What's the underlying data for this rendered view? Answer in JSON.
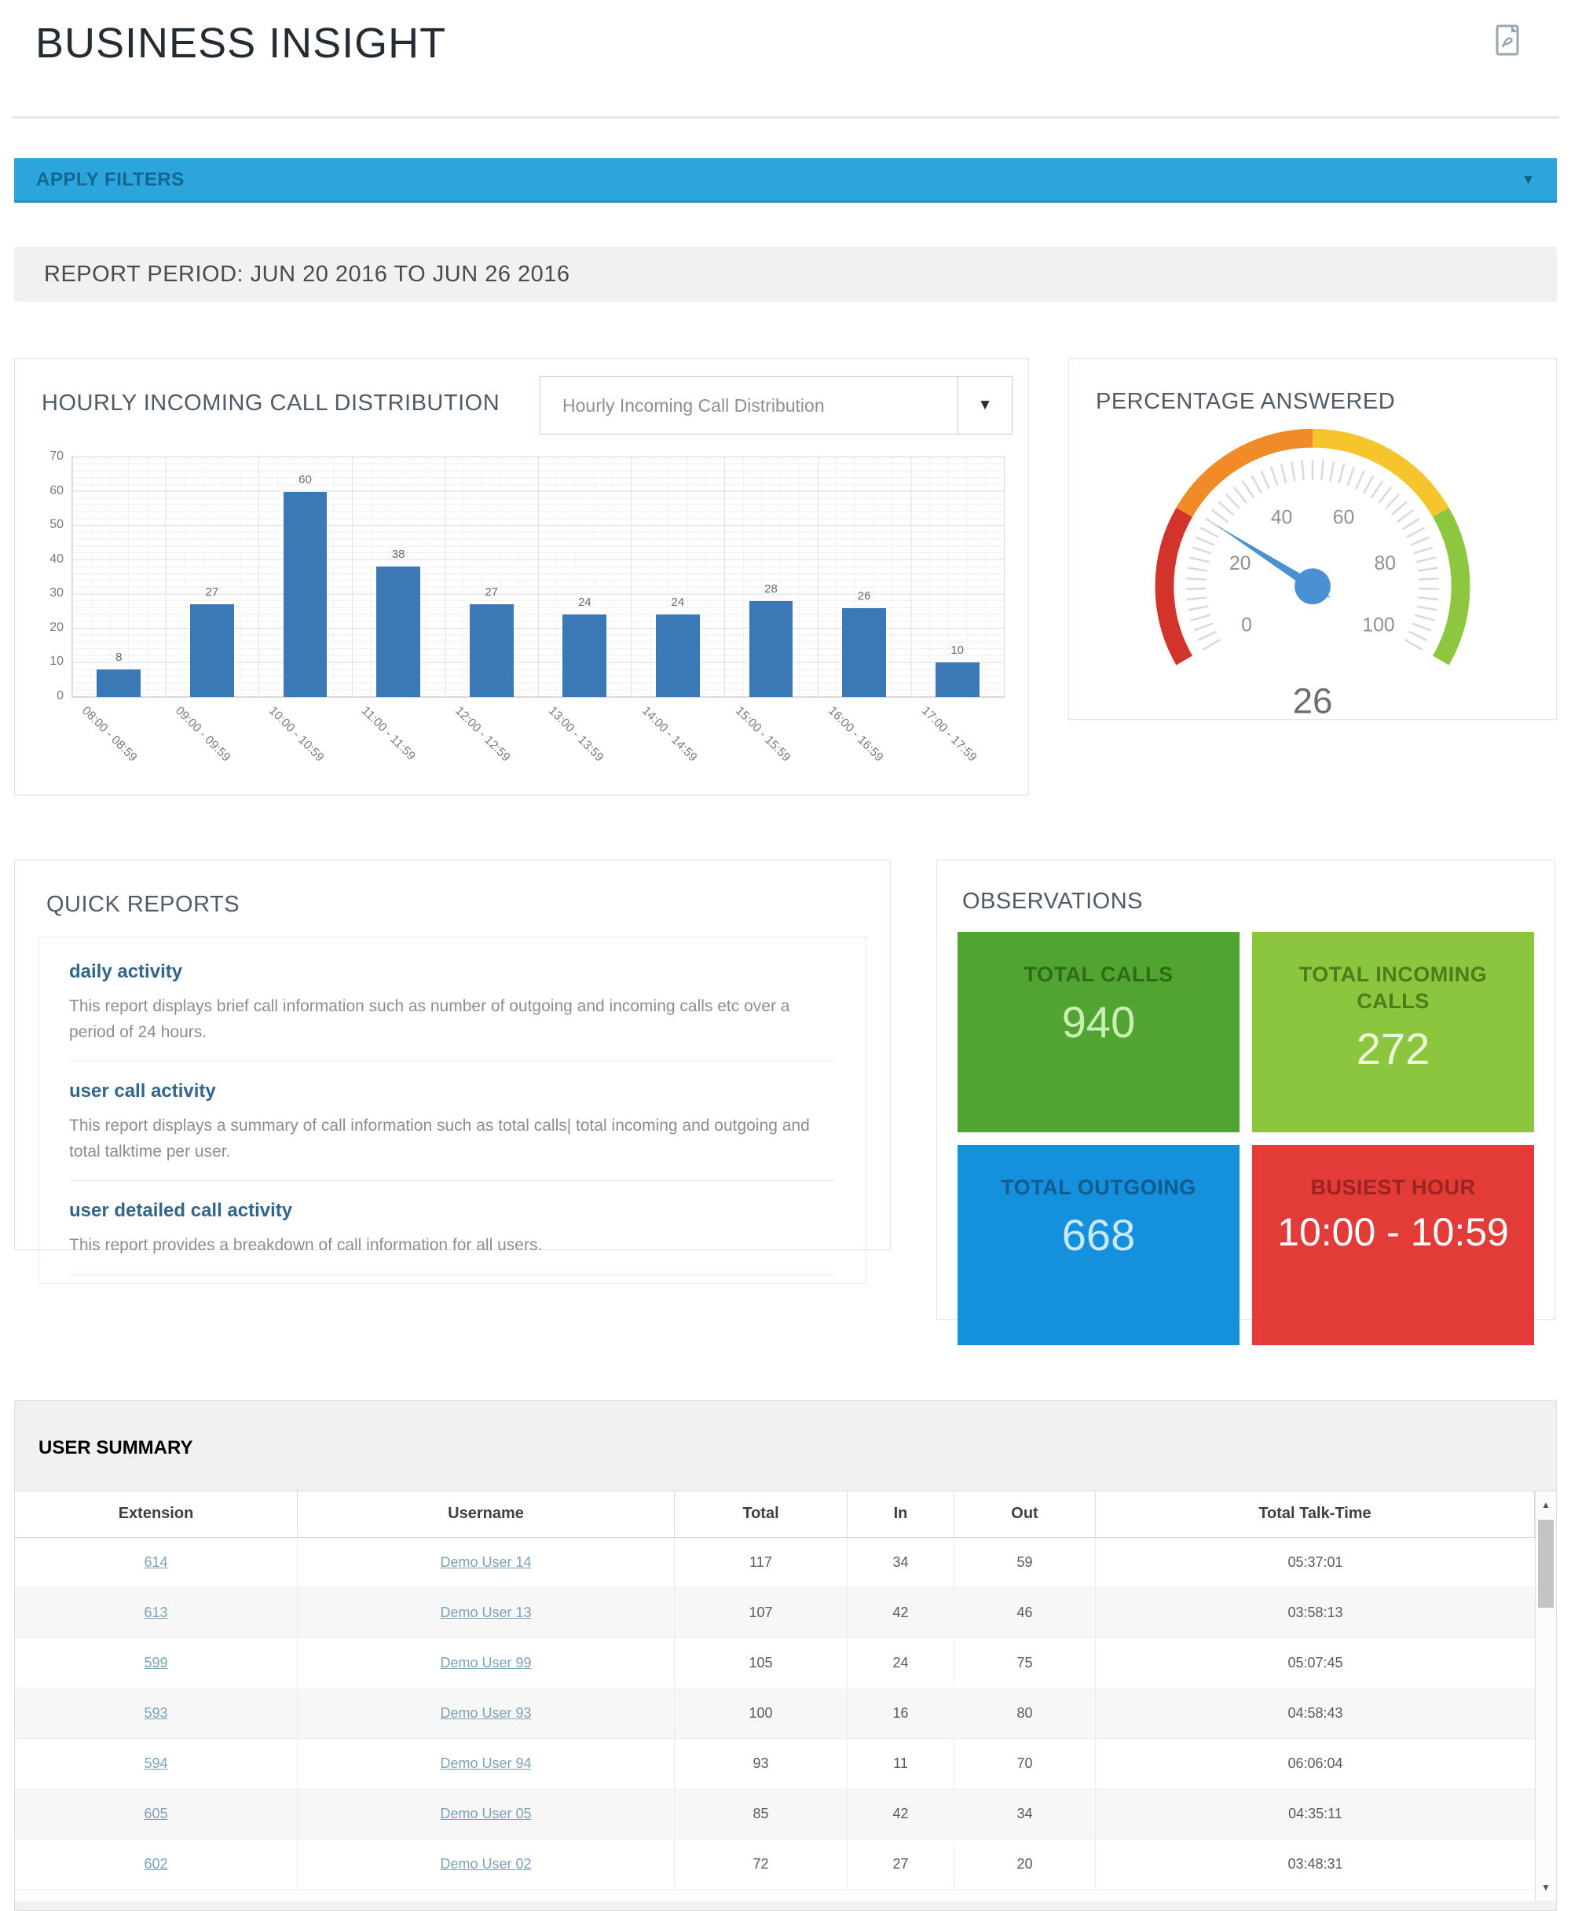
{
  "page": {
    "title": "BUSINESS INSIGHT"
  },
  "icons": {
    "caret_down": "▼",
    "arrow_up": "▲",
    "arrow_down": "▼"
  },
  "filters": {
    "label": "APPLY FILTERS"
  },
  "report_period": {
    "text": "REPORT PERIOD: JUN 20 2016 TO JUN 26 2016"
  },
  "chart_panel": {
    "title": "HOURLY INCOMING CALL DISTRIBUTION",
    "dropdown_selected": "Hourly Incoming Call Distribution"
  },
  "chart_data": [
    {
      "type": "bar",
      "title": "Hourly Incoming Call Distribution",
      "categories": [
        "08:00 - 08:59",
        "09:00 - 09:59",
        "10:00 - 10:59",
        "11:00 - 11:59",
        "12:00 - 12:59",
        "13:00 - 13:59",
        "14:00 - 14:59",
        "15:00 - 15:59",
        "16:00 - 16:59",
        "17:00 - 17:59"
      ],
      "values": [
        8,
        27,
        60,
        38,
        27,
        24,
        24,
        28,
        26,
        10
      ],
      "xlabel": "",
      "ylabel": "",
      "ylim": [
        0,
        70
      ],
      "ytick_step": 10,
      "grid": true,
      "bar_color": "#3a79b6"
    },
    {
      "type": "gauge",
      "title": "Percentage Answered",
      "value": 26,
      "min": 0,
      "max": 100,
      "ticks": [
        0,
        20,
        40,
        60,
        80,
        100
      ],
      "segments": [
        {
          "from": 0,
          "to": 25,
          "color": "#d2342c"
        },
        {
          "from": 25,
          "to": 50,
          "color": "#f08b28"
        },
        {
          "from": 50,
          "to": 75,
          "color": "#f6c52e"
        },
        {
          "from": 75,
          "to": 100,
          "color": "#8dc63f"
        }
      ],
      "needle_color": "#4a90d2"
    }
  ],
  "gauge_panel": {
    "title": "PERCENTAGE ANSWERED",
    "value_label": "26"
  },
  "quick_reports": {
    "title": "QUICK REPORTS",
    "items": [
      {
        "title": "daily activity",
        "desc": "This report displays brief call information such as number of outgoing and incoming calls etc over a period of 24 hours."
      },
      {
        "title": "user call activity",
        "desc": "This report displays a summary of call information such as total calls|  total incoming and outgoing and total talktime per user."
      },
      {
        "title": "user detailed call activity",
        "desc": "This report provides a breakdown of call information for all users."
      }
    ]
  },
  "observations": {
    "title": "OBSERVATIONS",
    "tiles": [
      {
        "id": "total-calls",
        "label": "TOTAL CALLS",
        "value": "940",
        "bg": "#52a432",
        "label_color": "#2e6b14",
        "value_color": "#c9efb3"
      },
      {
        "id": "total-incoming",
        "label": "TOTAL INCOMING CALLS",
        "value": "272",
        "bg": "#8cc63f",
        "label_color": "#4c7d1b",
        "value_color": "#eef9da"
      },
      {
        "id": "total-outgoing",
        "label": "TOTAL OUTGOING",
        "value": "668",
        "bg": "#1590dc",
        "label_color": "#105c90",
        "value_color": "#c8e9fb"
      },
      {
        "id": "busiest-hour",
        "label": "BUSIEST HOUR",
        "value": "10:00 - 10:59",
        "bg": "#e23b38",
        "label_color": "#9c2420",
        "value_color": "#ffffff"
      }
    ]
  },
  "user_summary": {
    "title": "USER SUMMARY",
    "columns": [
      "Extension",
      "Username",
      "Total",
      "In",
      "Out",
      "Total Talk-Time"
    ],
    "rows": [
      [
        "614",
        "Demo User 14",
        "117",
        "34",
        "59",
        "05:37:01"
      ],
      [
        "613",
        "Demo User 13",
        "107",
        "42",
        "46",
        "03:58:13"
      ],
      [
        "599",
        "Demo User 99",
        "105",
        "24",
        "75",
        "05:07:45"
      ],
      [
        "593",
        "Demo User 93",
        "100",
        "16",
        "80",
        "04:58:43"
      ],
      [
        "594",
        "Demo User 94",
        "93",
        "11",
        "70",
        "06:06:04"
      ],
      [
        "605",
        "Demo User 05",
        "85",
        "42",
        "34",
        "04:35:11"
      ],
      [
        "602",
        "Demo User 02",
        "72",
        "27",
        "20",
        "03:48:31"
      ]
    ]
  }
}
